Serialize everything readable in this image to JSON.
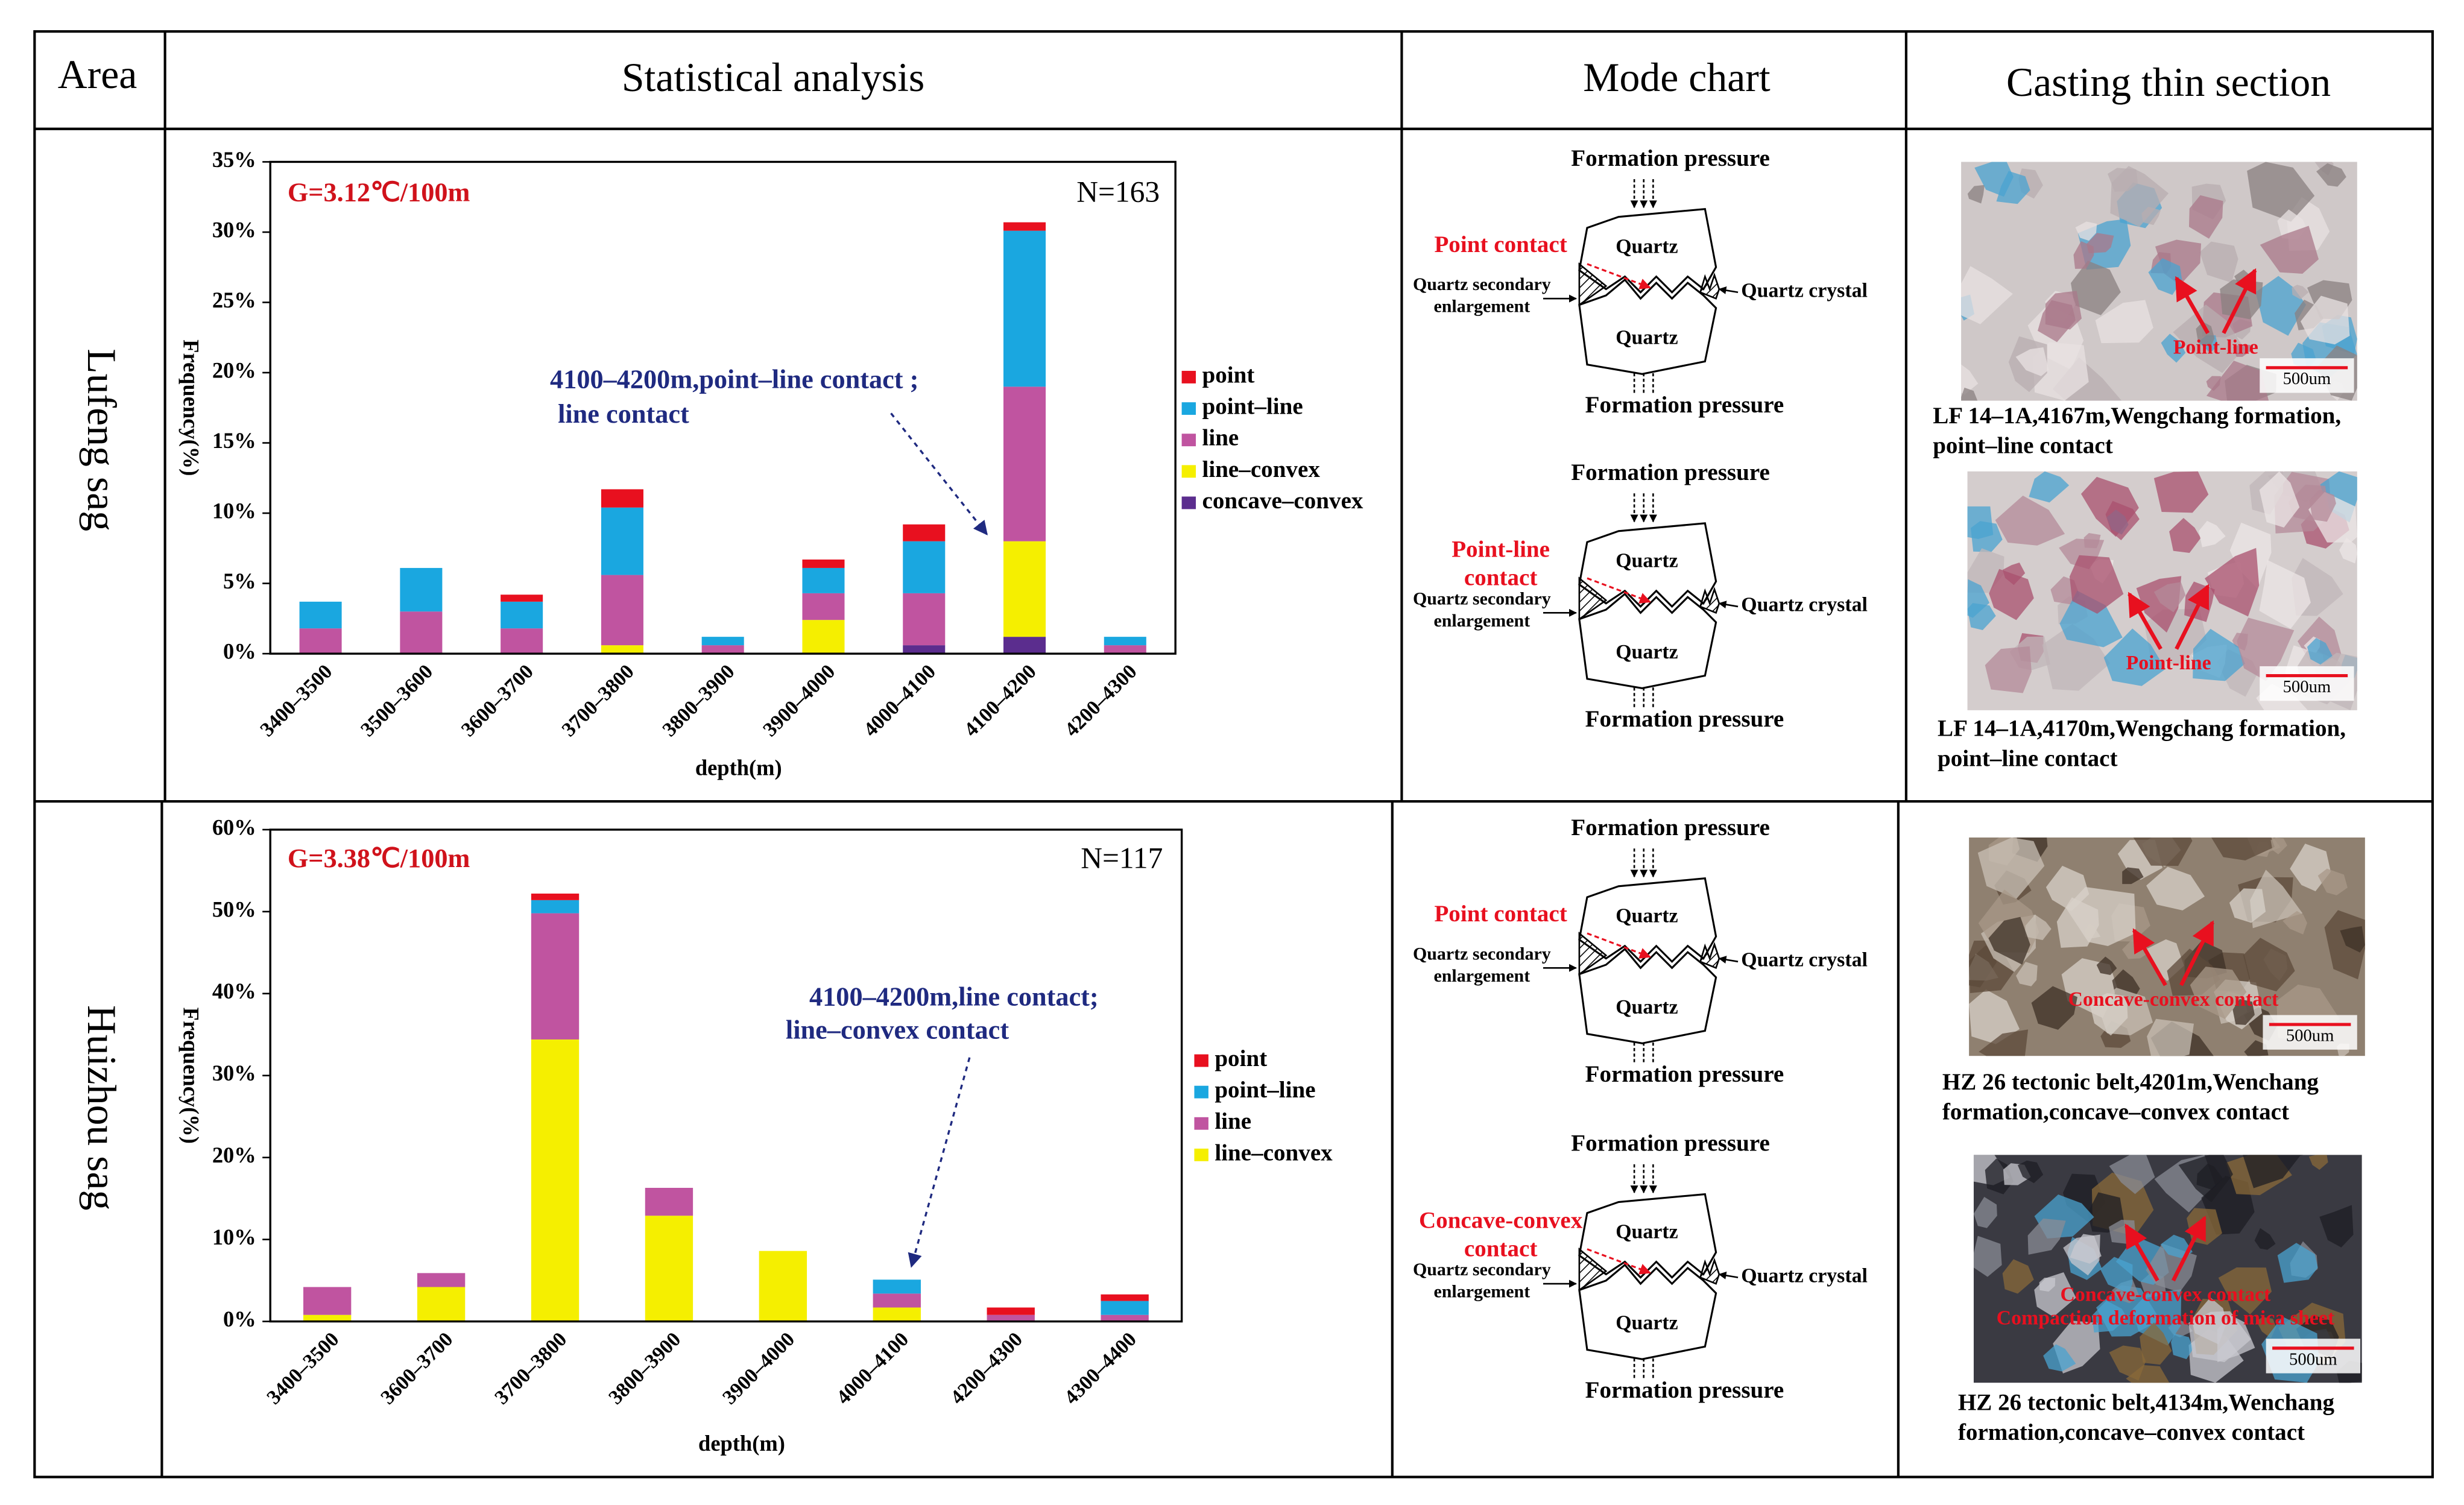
{
  "table": {
    "headers": [
      "Area",
      "Statistical analysis",
      "Mode chart",
      "Casting thin section"
    ],
    "areas": [
      "Lufeng sag",
      "Huizhou sag"
    ]
  },
  "chart_data": [
    {
      "type": "bar",
      "stacked": true,
      "y_label": "Frequency(%)",
      "x_label": "depth(m)",
      "gradient": "G=3.12℃/100m",
      "n": "N=163",
      "annotation": [
        "4100–4200m,point–line contact ;",
        "line contact"
      ],
      "categories": [
        "3400–3500",
        "3500–3600",
        "3600–3700",
        "3700–3800",
        "3800–3900",
        "3900–4000",
        "4000–4100",
        "4100–4200",
        "4200–4300"
      ],
      "series": [
        {
          "name": "point",
          "color": "#e8101f",
          "values": [
            0,
            0,
            0.5,
            1.3,
            0,
            0.6,
            1.2,
            0.6,
            0
          ]
        },
        {
          "name": "point–line",
          "color": "#1aa7e0",
          "values": [
            1.9,
            3.1,
            1.9,
            4.8,
            0.6,
            1.8,
            3.7,
            11.1,
            0.6
          ]
        },
        {
          "name": "line",
          "color": "#c054a0",
          "values": [
            1.8,
            3.0,
            1.8,
            5.0,
            0.6,
            1.9,
            3.7,
            11.0,
            0.6
          ]
        },
        {
          "name": "line–convex",
          "color": "#f5ef00",
          "values": [
            0,
            0,
            0,
            0.6,
            0,
            2.4,
            0,
            6.8,
            0
          ]
        },
        {
          "name": "concave–convex",
          "color": "#5b2d8e",
          "values": [
            0,
            0,
            0,
            0,
            0,
            0,
            0.6,
            1.2,
            0
          ]
        }
      ],
      "ylim": [
        0,
        35
      ],
      "yticks": [
        {
          "value": 0,
          "label": "0%"
        },
        {
          "value": 5,
          "label": "5%"
        },
        {
          "value": 10,
          "label": "10%"
        },
        {
          "value": 15,
          "label": "15%"
        },
        {
          "value": 20,
          "label": "20%"
        },
        {
          "value": 25,
          "label": "25%"
        },
        {
          "value": 30,
          "label": "30%"
        },
        {
          "value": 35,
          "label": "35%"
        }
      ]
    },
    {
      "type": "bar",
      "stacked": true,
      "y_label": "Frequency(%)",
      "x_label": "depth(m)",
      "gradient": "G=3.38℃/100m",
      "n": "N=117",
      "annotation": [
        "4100–4200m,line contact;",
        "line–convex contact"
      ],
      "categories": [
        "3400–3500",
        "3600–3700",
        "3700–3800",
        "3800–3900",
        "3900–4000",
        "4000–4100",
        "4200–4300",
        "4300–4400"
      ],
      "series": [
        {
          "name": "point",
          "color": "#e8101f",
          "values": [
            0,
            0,
            0.8,
            0,
            0,
            0,
            0.9,
            0.8
          ]
        },
        {
          "name": "point–line",
          "color": "#1aa7e0",
          "values": [
            0,
            0,
            1.6,
            0,
            0,
            1.7,
            0,
            1.7
          ]
        },
        {
          "name": "line",
          "color": "#c054a0",
          "values": [
            3.4,
            1.7,
            15.4,
            3.4,
            0,
            1.7,
            0.8,
            0.8
          ]
        },
        {
          "name": "line–convex",
          "color": "#f5ef00",
          "values": [
            0.8,
            4.2,
            34.4,
            12.9,
            8.6,
            1.7,
            0,
            0
          ]
        }
      ],
      "ylim": [
        0,
        60
      ],
      "yticks": [
        {
          "value": 0,
          "label": "0%"
        },
        {
          "value": 10,
          "label": "10%"
        },
        {
          "value": 20,
          "label": "20%"
        },
        {
          "value": 30,
          "label": "30%"
        },
        {
          "value": 40,
          "label": "40%"
        },
        {
          "value": 50,
          "label": "50%"
        },
        {
          "value": 60,
          "label": "60%"
        }
      ]
    }
  ],
  "mode_charts": [
    {
      "pressure_top": "Formation pressure",
      "pressure_bottom": "Formation pressure",
      "contact": [
        "Point contact"
      ],
      "grain_top": "Quartz",
      "grain_bottom": "Quartz",
      "enlargement": [
        "Quartz secondary",
        "enlargement"
      ],
      "crystal": "Quartz crystal"
    },
    {
      "pressure_top": "Formation pressure",
      "pressure_bottom": "Formation pressure",
      "contact": [
        "Point-line",
        "contact"
      ],
      "grain_top": "Quartz",
      "grain_bottom": "Quartz",
      "enlargement": [
        "Quartz secondary",
        "enlargement"
      ],
      "crystal": "Quartz crystal"
    },
    {
      "pressure_top": "Formation pressure",
      "pressure_bottom": "Formation pressure",
      "contact": [
        "Point contact"
      ],
      "grain_top": "Quartz",
      "grain_bottom": "Quartz",
      "enlargement": [
        "Quartz secondary",
        "enlargement"
      ],
      "crystal": "Quartz crystal"
    },
    {
      "pressure_top": "Formation pressure",
      "pressure_bottom": "Formation pressure",
      "contact": [
        "Concave-convex",
        "contact"
      ],
      "grain_top": "Quartz",
      "grain_bottom": "Quartz",
      "enlargement": [
        "Quartz secondary",
        "enlargement"
      ],
      "crystal": "Quartz crystal"
    }
  ],
  "thin_sections": [
    {
      "label": [
        "Point-line"
      ],
      "scale": "500um",
      "caption": [
        "LF 14–1A,4167m,Wengchang formation,",
        "point–line contact"
      ]
    },
    {
      "label": [
        "Point-line"
      ],
      "scale": "500um",
      "caption": [
        "LF 14–1A,4170m,Wengchang formation,",
        "point–line contact"
      ]
    },
    {
      "label": [
        "Concave-convex contact"
      ],
      "scale": "500um",
      "caption": [
        "HZ 26 tectonic belt,4201m,Wenchang",
        "formation,concave–convex contact"
      ]
    },
    {
      "label": [
        "Concave-convex contact",
        "Compaction deformation of mica sheet"
      ],
      "scale": "500um",
      "caption": [
        "HZ 26 tectonic belt,4134m,Wenchang",
        "formation,concave–convex contact"
      ]
    }
  ]
}
